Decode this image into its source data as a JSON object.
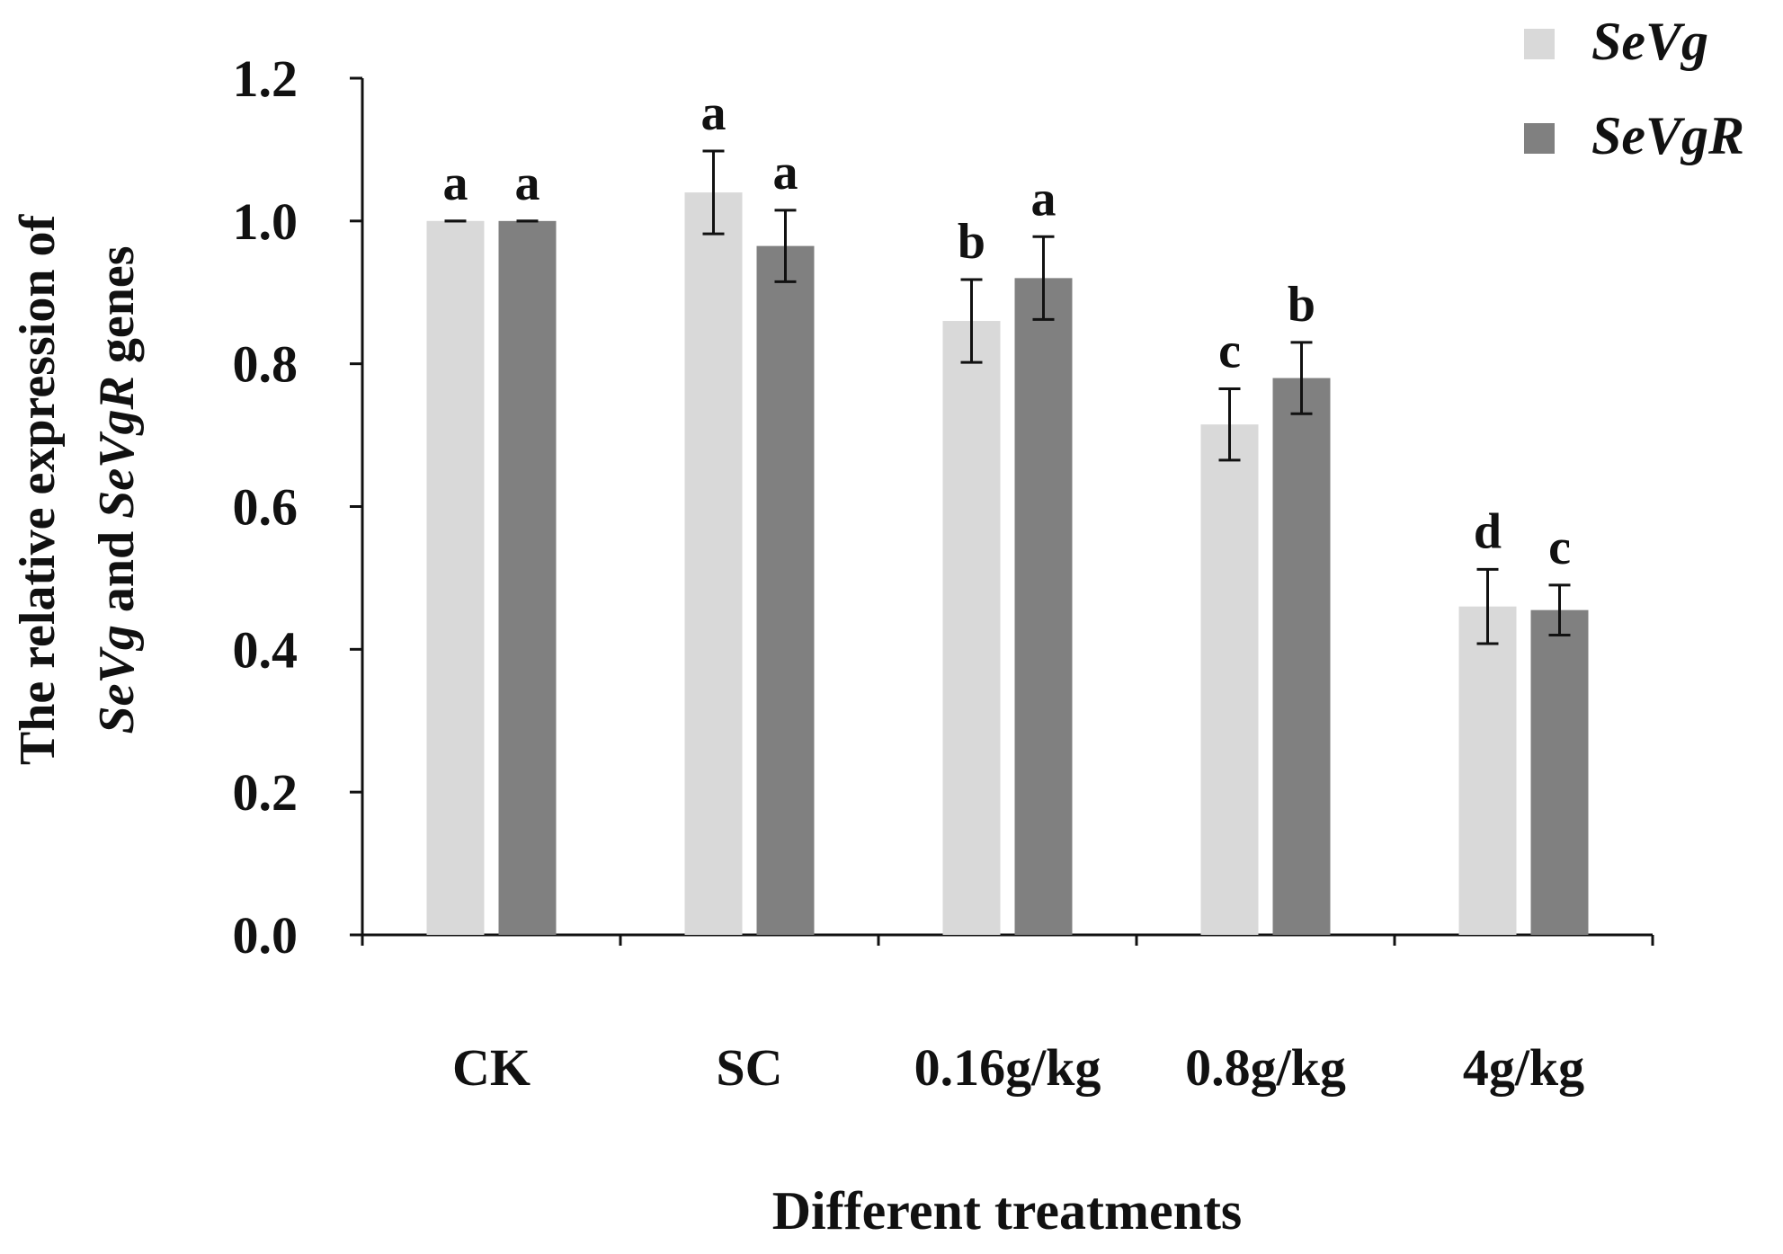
{
  "chart_data": {
    "type": "bar",
    "title": "",
    "ylabel_line1": "The relative expression of",
    "ylabel_line2_parts": [
      {
        "text": "SeVg",
        "italic": true
      },
      {
        "text": " and ",
        "italic": false
      },
      {
        "text": "SeVgR",
        "italic": true
      },
      {
        "text": " genes",
        "italic": false
      }
    ],
    "xlabel": "Different treatments",
    "categories": [
      "CK",
      "SC",
      "0.16g/kg",
      "0.8g/kg",
      "4g/kg"
    ],
    "ylim": [
      0,
      1.2
    ],
    "yticks": [
      0,
      0.2,
      0.4,
      0.6,
      0.8,
      1.0,
      1.2
    ],
    "ytick_labels": [
      "0.0",
      "0.2",
      "0.4",
      "0.6",
      "0.8",
      "1.0",
      "1.2"
    ],
    "grid": false,
    "legend_position": "top-right",
    "series": [
      {
        "name": "SeVg",
        "color": "#d9d9d9",
        "values": [
          1.0,
          1.04,
          0.86,
          0.715,
          0.46
        ],
        "errors": [
          0.0,
          0.058,
          0.058,
          0.05,
          0.052
        ],
        "sig_letters": [
          "a",
          "a",
          "b",
          "c",
          "d"
        ]
      },
      {
        "name": "SeVgR",
        "color": "#808080",
        "values": [
          1.0,
          0.965,
          0.92,
          0.78,
          0.455
        ],
        "errors": [
          0.0,
          0.05,
          0.058,
          0.05,
          0.035
        ],
        "sig_letters": [
          "a",
          "a",
          "a",
          "b",
          "c"
        ]
      }
    ]
  }
}
